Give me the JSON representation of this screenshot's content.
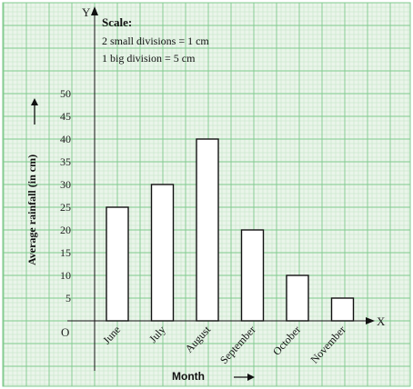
{
  "chart_data": {
    "type": "bar",
    "categories": [
      "June",
      "July",
      "August",
      "September",
      "October",
      "November"
    ],
    "values": [
      25,
      30,
      40,
      20,
      10,
      5
    ],
    "title": "",
    "xlabel": "Month",
    "ylabel": "Average rainfall (in cm)",
    "ylim": [
      0,
      50
    ],
    "yticks": [
      5,
      10,
      15,
      20,
      25,
      30,
      35,
      40,
      45,
      50
    ],
    "origin_label": "O",
    "x_axis_label": "X",
    "y_axis_label": "Y",
    "grid": true,
    "scale": {
      "heading": "Scale:",
      "line1": "2 small divisions = 1 cm",
      "line2": "1 big division = 5 cm"
    },
    "colors": {
      "background": "#eaf5ea",
      "grid_minor": "#bfe3c3",
      "grid_major": "#7fc98c",
      "bar_fill": "#ffffff",
      "bar_stroke": "#111111",
      "axis": "#111111"
    }
  }
}
